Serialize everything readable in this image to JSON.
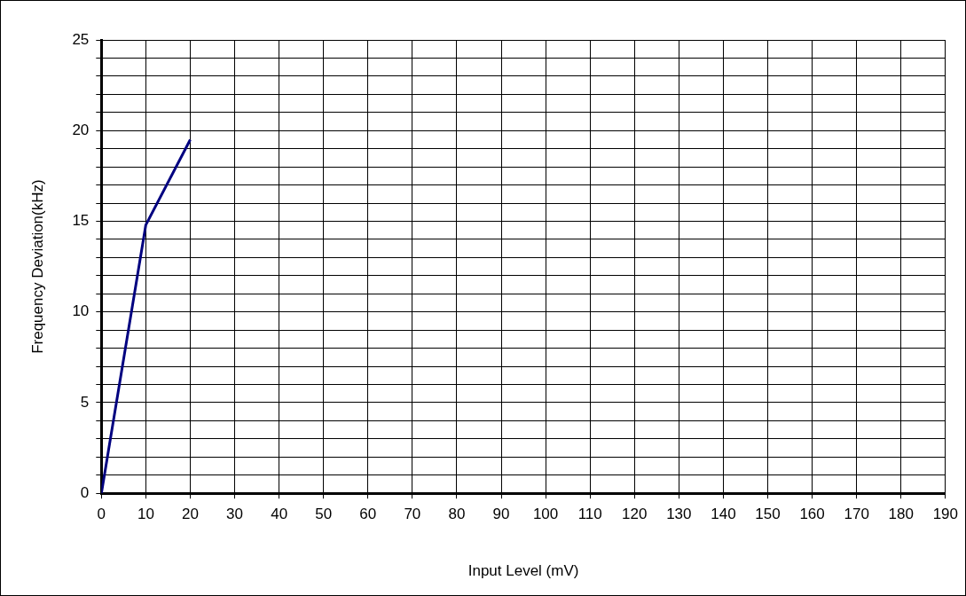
{
  "chart_data": {
    "type": "line",
    "xlabel": "Input Level (mV)",
    "ylabel": "Frequency Deviation(kHz)",
    "x": [
      0,
      10,
      20
    ],
    "series": [
      {
        "color": "#000080",
        "values": [
          0,
          14.8,
          19.5
        ]
      }
    ],
    "xlim": [
      0,
      190
    ],
    "xticks": [
      0,
      10,
      20,
      30,
      40,
      50,
      60,
      70,
      80,
      90,
      100,
      110,
      120,
      130,
      140,
      150,
      160,
      170,
      180,
      190
    ],
    "ylim": [
      0,
      25
    ],
    "yticks": [
      0,
      {
        "value": 1,
        "label": null
      },
      {
        "value": 2,
        "label": null
      },
      {
        "value": 3,
        "label": null
      },
      {
        "value": 4,
        "label": null
      },
      5,
      {
        "value": 6,
        "label": null
      },
      {
        "value": 7,
        "label": null
      },
      {
        "value": 8,
        "label": null
      },
      {
        "value": 9,
        "label": null
      },
      10,
      {
        "value": 11,
        "label": null
      },
      {
        "value": 12,
        "label": null
      },
      {
        "value": 13,
        "label": null
      },
      {
        "value": 14,
        "label": null
      },
      15,
      {
        "value": 16,
        "label": null
      },
      {
        "value": 17,
        "label": null
      },
      {
        "value": 18,
        "label": null
      },
      {
        "value": 19,
        "label": null
      },
      20,
      {
        "value": 21,
        "label": null
      },
      {
        "value": 22,
        "label": null
      },
      {
        "value": 23,
        "label": null
      },
      {
        "value": 24,
        "label": null
      },
      25
    ],
    "grid": true,
    "legend": false,
    "marker": "none",
    "line_style": "solid"
  }
}
